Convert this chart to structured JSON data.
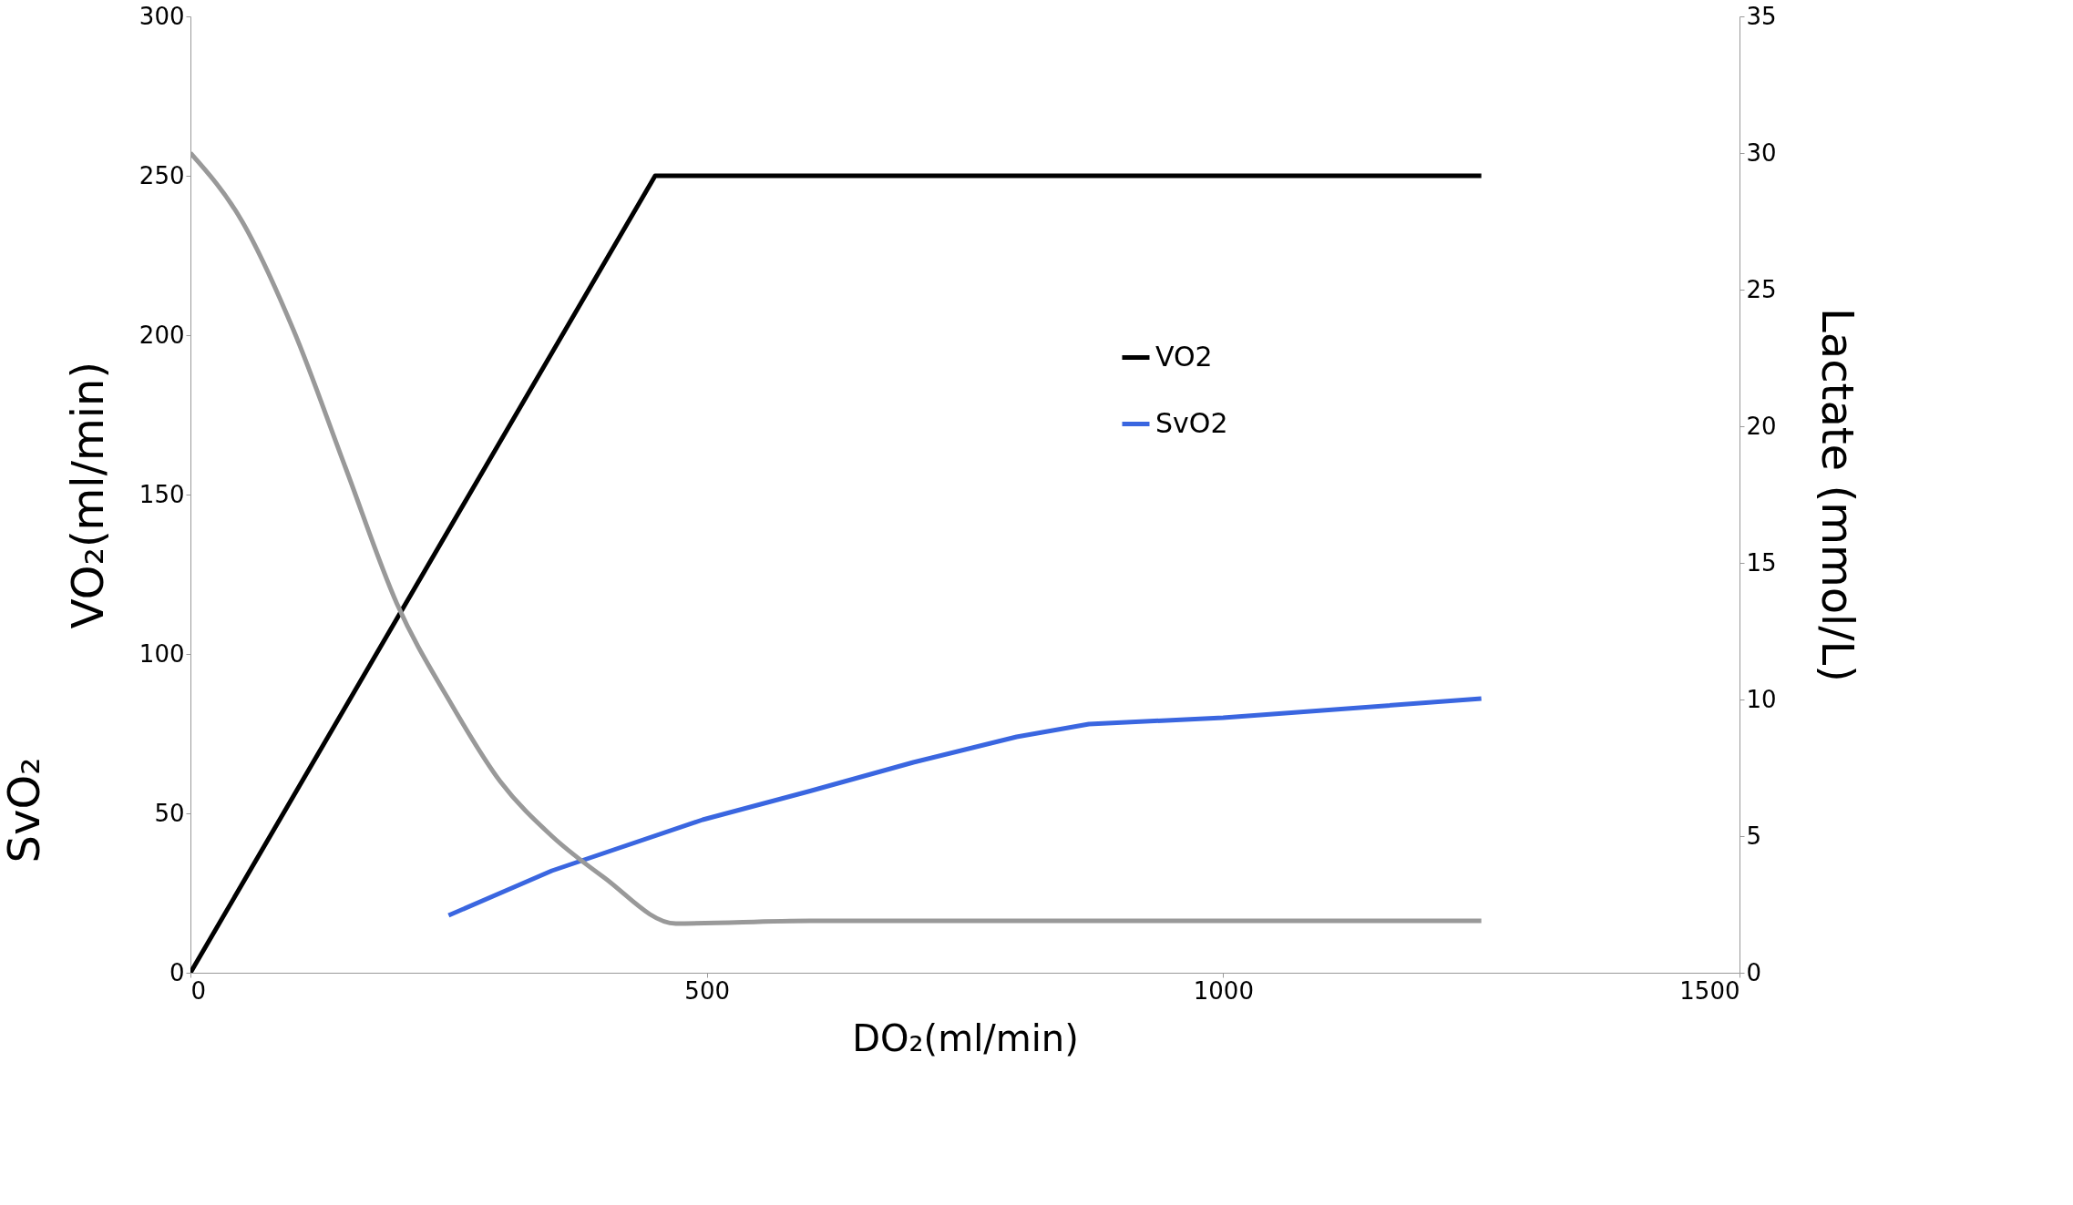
{
  "chart_data": {
    "type": "line",
    "xlabel": "DO₂(ml/min)",
    "ylabel": "VO₂(ml/min)",
    "y2label": "Lactate (mmol/L)",
    "annotations": [
      "SvO₂"
    ],
    "xlim": [
      0,
      1500
    ],
    "xticks": [
      0,
      500,
      1000,
      1500
    ],
    "ylim": [
      0,
      300
    ],
    "yticks": [
      0,
      50,
      100,
      150,
      200,
      250,
      300
    ],
    "y2lim": [
      0,
      35
    ],
    "y2ticks": [
      0,
      5,
      10,
      15,
      20,
      25,
      30,
      35
    ],
    "grid": false,
    "legend": "top right",
    "line_style": "solid",
    "marker": "none",
    "series": [
      {
        "name": "VO2",
        "color": "#000000",
        "x": [
          0,
          450,
          1250
        ],
        "values": [
          0,
          250,
          250
        ]
      },
      {
        "name": "SvO2",
        "color": "#3a66e0",
        "x": [
          250,
          350,
          496,
          600,
          700,
          800,
          870,
          1000,
          1250
        ],
        "values": [
          18,
          32,
          48,
          57,
          66,
          74,
          78,
          80,
          86
        ]
      },
      {
        "color": "#999999",
        "axis": "y2",
        "x": [
          0,
          50,
          100,
          150,
          200,
          250,
          300,
          350,
          400,
          470,
          600,
          1250
        ],
        "values": [
          30,
          27.5,
          23.5,
          18.5,
          13.5,
          10,
          7,
          5,
          3.5,
          1.8,
          1.9,
          1.9
        ]
      }
    ]
  }
}
